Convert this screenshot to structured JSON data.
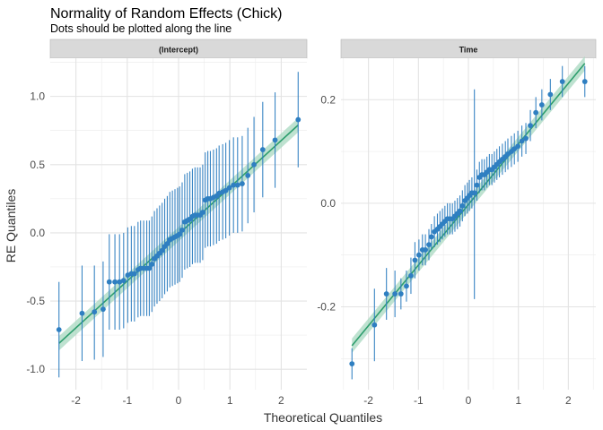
{
  "title": "Normality of Random Effects (Chick)",
  "subtitle": "Dots should be plotted along the line",
  "chart_data": {
    "type": "scatter",
    "title": "Normality of Random Effects (Chick)",
    "subtitle": "Dots should be plotted along the line",
    "xlabel": "Theoretical Quantiles",
    "ylabel": "RE Quantiles",
    "grid": true,
    "colors": {
      "points": "#2f7fc1",
      "line": "#2e9e6e",
      "band": "#a8d8c0",
      "strip": "#d9d9d9",
      "grid": "#ebebeb"
    },
    "panels": [
      {
        "name": "(Intercept)",
        "xlim": [
          -2.5,
          2.5
        ],
        "ylim": [
          -1.15,
          1.28
        ],
        "xticks": [
          -2,
          -1,
          0,
          1,
          2
        ],
        "yticks": [
          -1.0,
          -0.5,
          0.0,
          0.5,
          1.0
        ],
        "ytick_labels": [
          "-1.0",
          "-0.5",
          "0.0",
          "0.5",
          "1.0"
        ],
        "line": {
          "x": [
            -2.33,
            2.33
          ],
          "y": [
            -0.81,
            0.79
          ]
        },
        "points": [
          [
            -2.33,
            -0.71,
            -1.06,
            -0.36
          ],
          [
            -1.88,
            -0.59,
            -0.94,
            -0.24
          ],
          [
            -1.64,
            -0.58,
            -0.93,
            -0.24
          ],
          [
            -1.47,
            -0.56,
            -0.91,
            -0.21
          ],
          [
            -1.35,
            -0.36,
            -0.71,
            -0.01
          ],
          [
            -1.24,
            -0.36,
            -0.71,
            -0.01
          ],
          [
            -1.15,
            -0.36,
            -0.71,
            -0.01
          ],
          [
            -1.07,
            -0.35,
            -0.7,
            0.0
          ],
          [
            -0.99,
            -0.31,
            -0.66,
            0.04
          ],
          [
            -0.92,
            -0.3,
            -0.65,
            0.05
          ],
          [
            -0.86,
            -0.3,
            -0.65,
            0.05
          ],
          [
            -0.79,
            -0.27,
            -0.62,
            0.08
          ],
          [
            -0.74,
            -0.26,
            -0.61,
            0.09
          ],
          [
            -0.68,
            -0.26,
            -0.61,
            0.09
          ],
          [
            -0.62,
            -0.26,
            -0.61,
            0.09
          ],
          [
            -0.57,
            -0.26,
            -0.61,
            0.09
          ],
          [
            -0.52,
            -0.23,
            -0.58,
            0.12
          ],
          [
            -0.47,
            -0.19,
            -0.54,
            0.16
          ],
          [
            -0.42,
            -0.17,
            -0.52,
            0.18
          ],
          [
            -0.37,
            -0.15,
            -0.5,
            0.2
          ],
          [
            -0.32,
            -0.13,
            -0.48,
            0.22
          ],
          [
            -0.27,
            -0.1,
            -0.45,
            0.25
          ],
          [
            -0.22,
            -0.08,
            -0.43,
            0.27
          ],
          [
            -0.17,
            -0.05,
            -0.4,
            0.3
          ],
          [
            -0.12,
            -0.04,
            -0.39,
            0.31
          ],
          [
            -0.07,
            -0.03,
            -0.38,
            0.32
          ],
          [
            -0.02,
            -0.02,
            -0.37,
            0.33
          ],
          [
            0.02,
            -0.01,
            -0.36,
            0.34
          ],
          [
            0.07,
            0.02,
            -0.33,
            0.37
          ],
          [
            0.12,
            0.08,
            -0.27,
            0.43
          ],
          [
            0.17,
            0.09,
            -0.26,
            0.44
          ],
          [
            0.22,
            0.1,
            -0.25,
            0.45
          ],
          [
            0.27,
            0.12,
            -0.23,
            0.47
          ],
          [
            0.32,
            0.13,
            -0.22,
            0.48
          ],
          [
            0.37,
            0.13,
            -0.22,
            0.48
          ],
          [
            0.42,
            0.13,
            -0.22,
            0.48
          ],
          [
            0.47,
            0.15,
            -0.2,
            0.5
          ],
          [
            0.52,
            0.24,
            -0.11,
            0.59
          ],
          [
            0.57,
            0.25,
            -0.1,
            0.6
          ],
          [
            0.62,
            0.25,
            -0.1,
            0.6
          ],
          [
            0.68,
            0.26,
            -0.09,
            0.61
          ],
          [
            0.74,
            0.27,
            -0.08,
            0.62
          ],
          [
            0.79,
            0.29,
            -0.06,
            0.64
          ],
          [
            0.86,
            0.3,
            -0.05,
            0.65
          ],
          [
            0.92,
            0.31,
            -0.04,
            0.66
          ],
          [
            0.99,
            0.33,
            -0.02,
            0.68
          ],
          [
            1.07,
            0.35,
            0.0,
            0.7
          ],
          [
            1.15,
            0.35,
            0.0,
            0.7
          ],
          [
            1.24,
            0.36,
            0.01,
            0.71
          ],
          [
            1.35,
            0.42,
            0.07,
            0.77
          ],
          [
            1.47,
            0.5,
            0.15,
            0.85
          ],
          [
            1.64,
            0.61,
            0.26,
            0.96
          ],
          [
            1.88,
            0.68,
            0.33,
            1.03
          ],
          [
            2.33,
            0.83,
            0.48,
            1.18
          ]
        ]
      },
      {
        "name": "Time",
        "xlim": [
          -2.55,
          2.55
        ],
        "ylim": [
          -0.36,
          0.28
        ],
        "xticks": [
          -2,
          -1,
          0,
          1,
          2
        ],
        "yticks": [
          -0.2,
          0.0,
          0.2
        ],
        "ytick_labels": [
          "-0.2",
          "0.0",
          "0.2"
        ],
        "line": {
          "x": [
            -2.33,
            2.33
          ],
          "y": [
            -0.275,
            0.27
          ]
        },
        "points": [
          [
            -2.33,
            -0.31,
            -0.34,
            -0.28
          ],
          [
            -1.88,
            -0.235,
            -0.305,
            -0.165
          ],
          [
            -1.64,
            -0.175,
            -0.225,
            -0.125
          ],
          [
            -1.47,
            -0.175,
            -0.22,
            -0.13
          ],
          [
            -1.35,
            -0.175,
            -0.205,
            -0.145
          ],
          [
            -1.24,
            -0.16,
            -0.19,
            -0.13
          ],
          [
            -1.15,
            -0.14,
            -0.175,
            -0.105
          ],
          [
            -1.07,
            -0.11,
            -0.145,
            -0.075
          ],
          [
            -0.99,
            -0.1,
            -0.13,
            -0.07
          ],
          [
            -0.92,
            -0.09,
            -0.12,
            -0.06
          ],
          [
            -0.86,
            -0.09,
            -0.12,
            -0.06
          ],
          [
            -0.79,
            -0.08,
            -0.11,
            -0.05
          ],
          [
            -0.74,
            -0.065,
            -0.09,
            -0.04
          ],
          [
            -0.68,
            -0.055,
            -0.085,
            -0.025
          ],
          [
            -0.62,
            -0.05,
            -0.08,
            -0.02
          ],
          [
            -0.57,
            -0.045,
            -0.075,
            -0.015
          ],
          [
            -0.52,
            -0.04,
            -0.07,
            -0.01
          ],
          [
            -0.47,
            -0.035,
            -0.065,
            -0.005
          ],
          [
            -0.42,
            -0.03,
            -0.06,
            0.0
          ],
          [
            -0.37,
            -0.03,
            -0.06,
            0.0
          ],
          [
            -0.32,
            -0.03,
            -0.06,
            0.0
          ],
          [
            -0.27,
            -0.025,
            -0.055,
            0.005
          ],
          [
            -0.22,
            -0.02,
            -0.05,
            0.01
          ],
          [
            -0.17,
            -0.015,
            -0.045,
            0.015
          ],
          [
            -0.12,
            -0.005,
            -0.035,
            0.025
          ],
          [
            -0.07,
            0.005,
            -0.025,
            0.035
          ],
          [
            -0.02,
            0.01,
            -0.02,
            0.04
          ],
          [
            0.02,
            0.015,
            -0.015,
            0.045
          ],
          [
            0.07,
            0.02,
            -0.01,
            0.05
          ],
          [
            0.12,
            0.02,
            -0.185,
            0.22
          ],
          [
            0.17,
            0.035,
            0.005,
            0.065
          ],
          [
            0.22,
            0.05,
            0.02,
            0.08
          ],
          [
            0.27,
            0.055,
            0.025,
            0.085
          ],
          [
            0.32,
            0.055,
            0.025,
            0.085
          ],
          [
            0.37,
            0.06,
            0.03,
            0.09
          ],
          [
            0.42,
            0.065,
            0.035,
            0.095
          ],
          [
            0.47,
            0.065,
            0.035,
            0.095
          ],
          [
            0.52,
            0.07,
            0.04,
            0.1
          ],
          [
            0.57,
            0.075,
            0.045,
            0.105
          ],
          [
            0.62,
            0.08,
            0.05,
            0.11
          ],
          [
            0.68,
            0.085,
            0.055,
            0.115
          ],
          [
            0.74,
            0.09,
            0.06,
            0.12
          ],
          [
            0.79,
            0.095,
            0.065,
            0.125
          ],
          [
            0.86,
            0.1,
            0.07,
            0.13
          ],
          [
            0.92,
            0.105,
            0.075,
            0.135
          ],
          [
            0.99,
            0.11,
            0.08,
            0.14
          ],
          [
            1.07,
            0.12,
            0.09,
            0.15
          ],
          [
            1.15,
            0.125,
            0.095,
            0.155
          ],
          [
            1.24,
            0.15,
            0.12,
            0.18
          ],
          [
            1.35,
            0.175,
            0.145,
            0.205
          ],
          [
            1.47,
            0.19,
            0.16,
            0.22
          ],
          [
            1.64,
            0.21,
            0.18,
            0.24
          ],
          [
            1.88,
            0.235,
            0.205,
            0.265
          ],
          [
            2.33,
            0.235,
            0.205,
            0.265
          ]
        ]
      }
    ]
  }
}
